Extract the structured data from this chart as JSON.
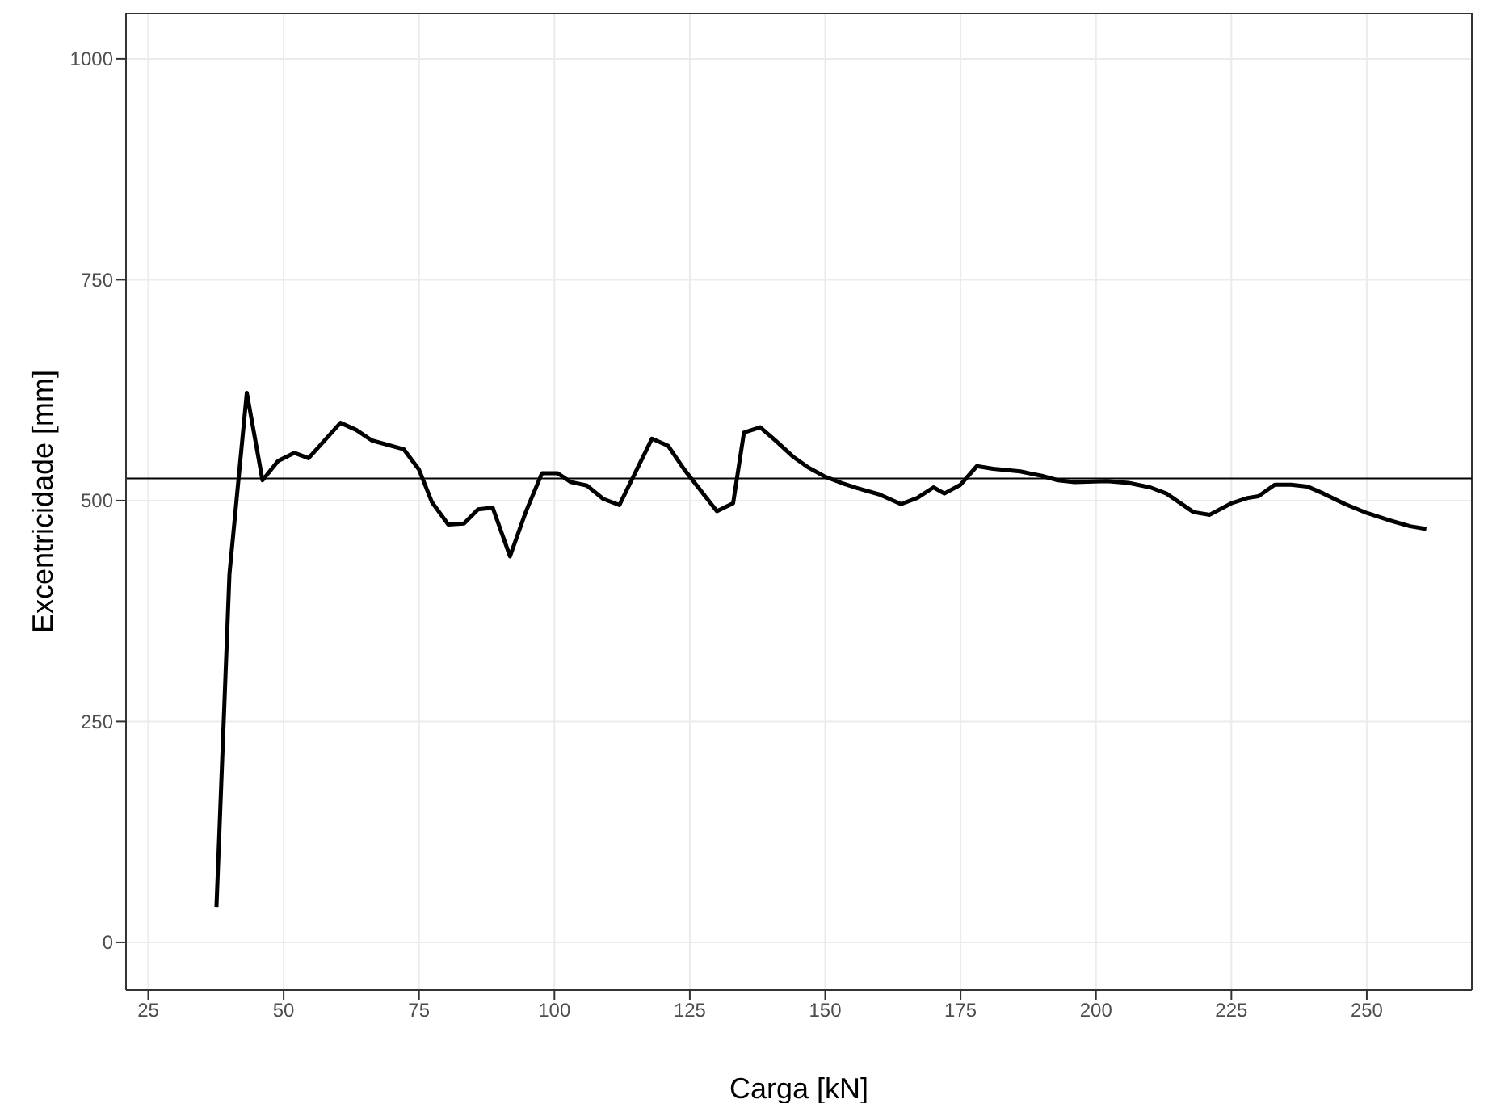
{
  "chart_data": {
    "type": "line",
    "xlabel": "Carga [kN]",
    "ylabel": "Excentricidade [mm]",
    "xlim": [
      20.9,
      269.4
    ],
    "xticks": [
      25,
      50,
      75,
      100,
      125,
      150,
      175,
      200,
      225,
      250
    ],
    "ylim": [
      -54,
      1052
    ],
    "yticks": [
      0,
      250,
      500,
      750,
      1000
    ],
    "grid": true,
    "legend": false,
    "marker": "none",
    "line_style": "solid",
    "series": [
      {
        "color": "#000000",
        "x": [
          37.6,
          40,
          43.2,
          46.1,
          49,
          52,
          54.6,
          60.5,
          63.4,
          66.3,
          72.2,
          75,
          77.4,
          80.4,
          83.3,
          85.9,
          88.6,
          91.8,
          94.7,
          97.7,
          100.6,
          103,
          106,
          109,
          112,
          118,
          121,
          124,
          130,
          133,
          135,
          138,
          141,
          144,
          147,
          150,
          153,
          156,
          160,
          164,
          167,
          170,
          172,
          175,
          178,
          181,
          186,
          190,
          193,
          196,
          202,
          206,
          210,
          213,
          218,
          221,
          225,
          228,
          230,
          233,
          236,
          239,
          242,
          246,
          250,
          254,
          258,
          261
        ],
        "values": [
          40,
          417,
          622,
          523,
          545,
          554,
          548,
          588,
          580,
          568,
          558,
          535,
          498,
          473,
          474,
          490,
          492,
          437,
          487,
          531,
          531,
          521,
          517,
          502,
          495,
          570,
          562,
          535,
          488,
          497,
          577,
          583,
          567,
          550,
          537,
          527,
          520,
          514,
          507,
          496,
          503,
          515,
          508,
          518,
          539,
          536,
          533,
          528,
          523,
          521,
          522,
          520,
          515,
          508,
          487,
          484,
          497,
          503,
          505,
          518,
          518,
          516,
          508,
          496,
          486,
          478,
          471,
          468
        ]
      }
    ],
    "ref_lines": [
      {
        "axis": "y",
        "value": 525,
        "color": "#000000",
        "line_style": "solid"
      }
    ]
  }
}
